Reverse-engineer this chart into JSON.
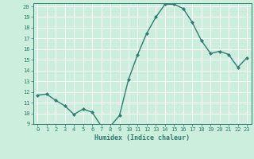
{
  "x": [
    0,
    1,
    2,
    3,
    4,
    5,
    6,
    7,
    8,
    9,
    10,
    11,
    12,
    13,
    14,
    15,
    16,
    17,
    18,
    19,
    20,
    21,
    22,
    23
  ],
  "y": [
    11.7,
    11.8,
    11.2,
    10.7,
    9.9,
    10.4,
    10.1,
    8.8,
    8.8,
    9.8,
    13.2,
    15.5,
    17.5,
    19.0,
    20.2,
    20.2,
    19.8,
    18.5,
    16.8,
    15.6,
    15.8,
    15.5,
    14.3,
    15.2
  ],
  "xlabel": "Humidex (Indice chaleur)",
  "ylim": [
    9,
    20
  ],
  "xlim": [
    -0.5,
    23.5
  ],
  "yticks": [
    9,
    10,
    11,
    12,
    13,
    14,
    15,
    16,
    17,
    18,
    19,
    20
  ],
  "xticks": [
    0,
    1,
    2,
    3,
    4,
    5,
    6,
    7,
    8,
    9,
    10,
    11,
    12,
    13,
    14,
    15,
    16,
    17,
    18,
    19,
    20,
    21,
    22,
    23
  ],
  "line_color": "#2e7d6e",
  "marker_color": "#2e7d6e",
  "bg_color": "#cceedd",
  "grid_color": "#ffffff",
  "xlabel_color": "#2e7d6e",
  "tick_color": "#2e7d6e",
  "font_family": "monospace"
}
